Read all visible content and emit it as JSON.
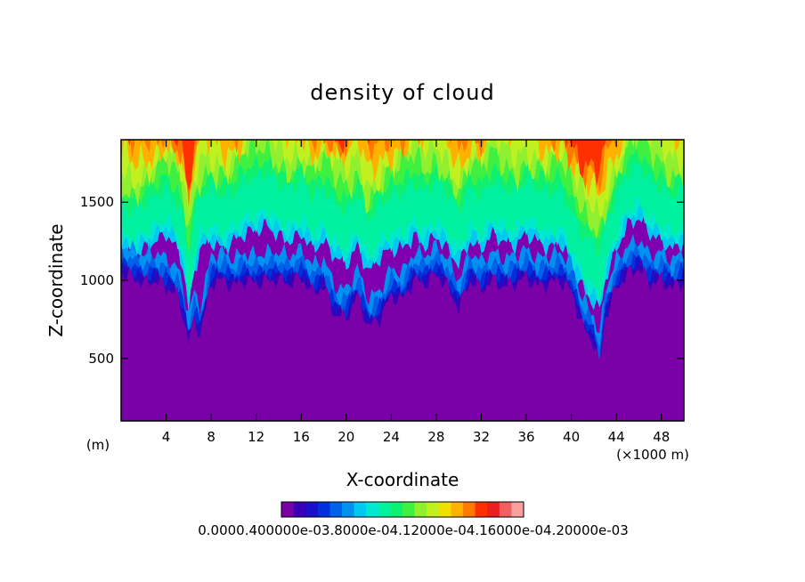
{
  "chart_data": {
    "type": "heatmap",
    "title": "density of cloud",
    "xlabel": "X-coordinate",
    "ylabel": "Z-coordinate",
    "x_unit_left": "(m)",
    "x_unit_right": "(×1000 m)",
    "xlim": [
      0,
      50
    ],
    "ylim": [
      100,
      1900
    ],
    "xticks": [
      4,
      8,
      12,
      16,
      20,
      24,
      28,
      32,
      36,
      40,
      44,
      48
    ],
    "xtick_labels": [
      "4",
      "8",
      "12",
      "16",
      "20",
      "24",
      "28",
      "32",
      "36",
      "40",
      "44",
      "48"
    ],
    "yticks": [
      500,
      1000,
      1500
    ],
    "ytick_labels": [
      "500",
      "1000",
      "1500"
    ],
    "colorbar": {
      "colors": [
        "#7a00a8",
        "#3a00b8",
        "#1a10c8",
        "#0030dc",
        "#0060e8",
        "#0090f0",
        "#00c8f0",
        "#00e8d0",
        "#00f0a0",
        "#10f070",
        "#40f040",
        "#90f030",
        "#c0f020",
        "#f0e000",
        "#ffb000",
        "#ff7800",
        "#ff3000",
        "#e82020",
        "#f06060",
        "#f8a0a0"
      ],
      "label_text": "0.0000.400000e-03.8000e-04.12000e-04.16000e-04.20000e-03"
    },
    "surface": {
      "x": [
        0,
        1,
        2,
        3,
        4,
        5,
        5.5,
        6,
        6.5,
        7,
        8,
        9,
        10,
        11,
        12,
        13,
        14,
        15,
        16,
        17,
        18,
        19,
        20,
        21,
        22,
        23,
        24,
        25,
        26,
        27,
        28,
        29,
        30,
        31,
        32,
        33,
        34,
        35,
        36,
        37,
        38,
        39,
        40,
        41,
        42,
        42.5,
        43,
        44,
        45,
        46,
        47,
        48,
        49,
        50
      ],
      "z_base": [
        1050,
        1020,
        980,
        1000,
        960,
        900,
        780,
        600,
        750,
        650,
        980,
        1000,
        960,
        1000,
        980,
        1000,
        1000,
        980,
        1020,
        920,
        960,
        780,
        760,
        900,
        700,
        760,
        900,
        870,
        1000,
        980,
        1040,
        960,
        820,
        1000,
        940,
        1000,
        960,
        980,
        1020,
        960,
        980,
        1000,
        930,
        700,
        600,
        450,
        760,
        950,
        1040,
        1080,
        980,
        1000,
        950,
        1000
      ],
      "z_cyan": [
        1300,
        1250,
        1300,
        1350,
        1400,
        1300,
        1200,
        900,
        1150,
        1300,
        1350,
        1300,
        1350,
        1400,
        1420,
        1450,
        1380,
        1350,
        1400,
        1300,
        1350,
        1250,
        1200,
        1320,
        1150,
        1250,
        1300,
        1300,
        1380,
        1320,
        1380,
        1300,
        1200,
        1350,
        1300,
        1400,
        1350,
        1320,
        1400,
        1350,
        1300,
        1350,
        1200,
        1050,
        950,
        900,
        1100,
        1300,
        1450,
        1500,
        1400,
        1350,
        1300,
        1350
      ],
      "z_green": [
        1550,
        1500,
        1550,
        1600,
        1650,
        1550,
        1450,
        1200,
        1450,
        1600,
        1650,
        1600,
        1620,
        1700,
        1720,
        1750,
        1680,
        1650,
        1700,
        1600,
        1650,
        1550,
        1500,
        1620,
        1450,
        1550,
        1600,
        1620,
        1680,
        1620,
        1700,
        1620,
        1500,
        1650,
        1600,
        1700,
        1650,
        1620,
        1700,
        1650,
        1620,
        1650,
        1500,
        1350,
        1300,
        1250,
        1400,
        1600,
        1750,
        1800,
        1700,
        1650,
        1600,
        1650
      ]
    }
  }
}
